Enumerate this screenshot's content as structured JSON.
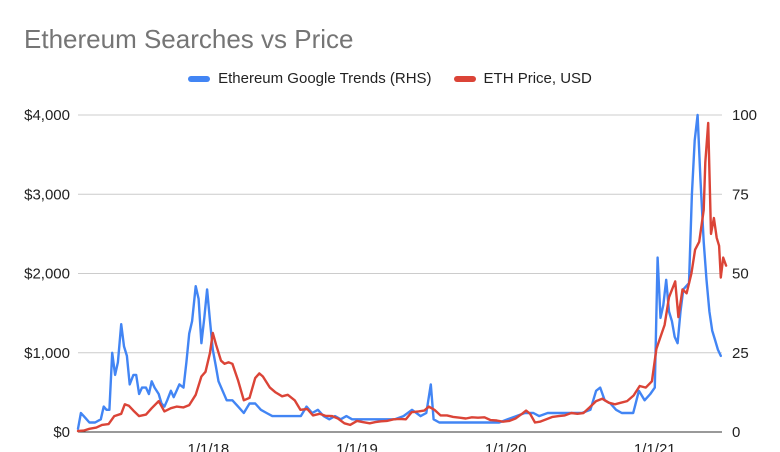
{
  "chart_data": {
    "type": "line",
    "title": "Ethereum Searches vs Price",
    "legend_position": "top",
    "grid": true,
    "x_range": [
      "2017-02-15",
      "2021-06-15"
    ],
    "x_ticks": [
      {
        "label": "1/1/18",
        "date": "2018-01-01"
      },
      {
        "label": "1/1/19",
        "date": "2019-01-01"
      },
      {
        "label": "1/1/20",
        "date": "2020-01-01"
      },
      {
        "label": "1/1/21",
        "date": "2021-01-01"
      }
    ],
    "y_left": {
      "min": 0,
      "max": 4000,
      "ticks": [
        0,
        1000,
        2000,
        3000,
        4000
      ],
      "tick_labels": [
        "$0",
        "$1,000",
        "$2,000",
        "$3,000",
        "$4,000"
      ]
    },
    "y_right": {
      "min": 0,
      "max": 100,
      "ticks": [
        0,
        25,
        50,
        75,
        100
      ],
      "tick_labels": [
        "0",
        "25",
        "50",
        "75",
        "100"
      ]
    },
    "series": [
      {
        "name": "Ethereum Google Trends (RHS)",
        "axis": "right",
        "color": "#4285F4",
        "points": [
          [
            "2017-02-15",
            1
          ],
          [
            "2017-02-22",
            6
          ],
          [
            "2017-03-01",
            5
          ],
          [
            "2017-03-08",
            4
          ],
          [
            "2017-03-15",
            3
          ],
          [
            "2017-03-29",
            3
          ],
          [
            "2017-04-12",
            4
          ],
          [
            "2017-04-19",
            8
          ],
          [
            "2017-04-26",
            7
          ],
          [
            "2017-05-03",
            7
          ],
          [
            "2017-05-10",
            25
          ],
          [
            "2017-05-17",
            18
          ],
          [
            "2017-05-24",
            22
          ],
          [
            "2017-06-01",
            34
          ],
          [
            "2017-06-08",
            27
          ],
          [
            "2017-06-15",
            24
          ],
          [
            "2017-06-22",
            15
          ],
          [
            "2017-07-01",
            18
          ],
          [
            "2017-07-08",
            18
          ],
          [
            "2017-07-15",
            12
          ],
          [
            "2017-07-22",
            14
          ],
          [
            "2017-08-01",
            14
          ],
          [
            "2017-08-08",
            12
          ],
          [
            "2017-08-15",
            16
          ],
          [
            "2017-08-22",
            14
          ],
          [
            "2017-09-01",
            12
          ],
          [
            "2017-09-08",
            9
          ],
          [
            "2017-09-15",
            8
          ],
          [
            "2017-09-22",
            10
          ],
          [
            "2017-10-01",
            13
          ],
          [
            "2017-10-08",
            11
          ],
          [
            "2017-10-15",
            13
          ],
          [
            "2017-10-22",
            15
          ],
          [
            "2017-11-01",
            14
          ],
          [
            "2017-11-08",
            22
          ],
          [
            "2017-11-15",
            31
          ],
          [
            "2017-11-22",
            35
          ],
          [
            "2017-12-01",
            46
          ],
          [
            "2017-12-08",
            42
          ],
          [
            "2017-12-15",
            28
          ],
          [
            "2017-12-22",
            36
          ],
          [
            "2017-12-29",
            45
          ],
          [
            "2018-01-05",
            35
          ],
          [
            "2018-01-12",
            26
          ],
          [
            "2018-01-19",
            21
          ],
          [
            "2018-01-26",
            16
          ],
          [
            "2018-02-05",
            13
          ],
          [
            "2018-02-15",
            10
          ],
          [
            "2018-03-01",
            10
          ],
          [
            "2018-03-15",
            8
          ],
          [
            "2018-03-29",
            6
          ],
          [
            "2018-04-12",
            9
          ],
          [
            "2018-04-26",
            9
          ],
          [
            "2018-05-10",
            7
          ],
          [
            "2018-05-24",
            6
          ],
          [
            "2018-06-07",
            5
          ],
          [
            "2018-06-21",
            5
          ],
          [
            "2018-07-05",
            5
          ],
          [
            "2018-07-19",
            5
          ],
          [
            "2018-08-02",
            5
          ],
          [
            "2018-08-16",
            5
          ],
          [
            "2018-08-30",
            8
          ],
          [
            "2018-09-13",
            6
          ],
          [
            "2018-09-27",
            7
          ],
          [
            "2018-10-11",
            5
          ],
          [
            "2018-10-25",
            4
          ],
          [
            "2018-11-08",
            5
          ],
          [
            "2018-11-22",
            4
          ],
          [
            "2018-12-06",
            5
          ],
          [
            "2018-12-20",
            4
          ],
          [
            "2019-01-10",
            4
          ],
          [
            "2019-02-01",
            4
          ],
          [
            "2019-02-21",
            4
          ],
          [
            "2019-03-14",
            4
          ],
          [
            "2019-04-04",
            4
          ],
          [
            "2019-04-25",
            5
          ],
          [
            "2019-05-16",
            7
          ],
          [
            "2019-06-06",
            5
          ],
          [
            "2019-06-20",
            6
          ],
          [
            "2019-07-01",
            15
          ],
          [
            "2019-07-08",
            4
          ],
          [
            "2019-07-22",
            3
          ],
          [
            "2019-08-12",
            3
          ],
          [
            "2019-09-02",
            3
          ],
          [
            "2019-09-23",
            3
          ],
          [
            "2019-10-14",
            3
          ],
          [
            "2019-11-04",
            3
          ],
          [
            "2019-11-25",
            3
          ],
          [
            "2019-12-16",
            3
          ],
          [
            "2020-01-06",
            4
          ],
          [
            "2020-01-27",
            5
          ],
          [
            "2020-02-17",
            6
          ],
          [
            "2020-03-09",
            6
          ],
          [
            "2020-03-23",
            5
          ],
          [
            "2020-04-13",
            6
          ],
          [
            "2020-05-04",
            6
          ],
          [
            "2020-05-25",
            6
          ],
          [
            "2020-06-15",
            6
          ],
          [
            "2020-07-06",
            6
          ],
          [
            "2020-07-27",
            7
          ],
          [
            "2020-08-10",
            13
          ],
          [
            "2020-08-20",
            14
          ],
          [
            "2020-08-31",
            10
          ],
          [
            "2020-09-14",
            9
          ],
          [
            "2020-09-28",
            7
          ],
          [
            "2020-10-12",
            6
          ],
          [
            "2020-10-26",
            6
          ],
          [
            "2020-11-09",
            6
          ],
          [
            "2020-11-23",
            13
          ],
          [
            "2020-12-07",
            10
          ],
          [
            "2020-12-21",
            12
          ],
          [
            "2021-01-01",
            14
          ],
          [
            "2021-01-08",
            55
          ],
          [
            "2021-01-15",
            36
          ],
          [
            "2021-01-22",
            40
          ],
          [
            "2021-01-29",
            48
          ],
          [
            "2021-02-05",
            38
          ],
          [
            "2021-02-12",
            35
          ],
          [
            "2021-02-19",
            30
          ],
          [
            "2021-02-26",
            28
          ],
          [
            "2021-03-05",
            38
          ],
          [
            "2021-03-12",
            45
          ],
          [
            "2021-03-19",
            46
          ],
          [
            "2021-03-26",
            47
          ],
          [
            "2021-04-02",
            75
          ],
          [
            "2021-04-09",
            92
          ],
          [
            "2021-04-16",
            100
          ],
          [
            "2021-04-23",
            80
          ],
          [
            "2021-05-01",
            60
          ],
          [
            "2021-05-08",
            48
          ],
          [
            "2021-05-15",
            38
          ],
          [
            "2021-05-22",
            32
          ],
          [
            "2021-05-29",
            29
          ],
          [
            "2021-06-05",
            26
          ],
          [
            "2021-06-12",
            24
          ]
        ]
      },
      {
        "name": "ETH Price, USD",
        "axis": "left",
        "color": "#DB4437",
        "points": [
          [
            "2017-02-15",
            12
          ],
          [
            "2017-03-01",
            18
          ],
          [
            "2017-03-15",
            40
          ],
          [
            "2017-04-01",
            55
          ],
          [
            "2017-04-15",
            90
          ],
          [
            "2017-05-01",
            100
          ],
          [
            "2017-05-15",
            200
          ],
          [
            "2017-06-01",
            230
          ],
          [
            "2017-06-10",
            350
          ],
          [
            "2017-06-20",
            330
          ],
          [
            "2017-07-01",
            270
          ],
          [
            "2017-07-15",
            200
          ],
          [
            "2017-08-01",
            220
          ],
          [
            "2017-08-15",
            300
          ],
          [
            "2017-09-01",
            390
          ],
          [
            "2017-09-15",
            260
          ],
          [
            "2017-10-01",
            300
          ],
          [
            "2017-10-15",
            320
          ],
          [
            "2017-11-01",
            310
          ],
          [
            "2017-11-15",
            340
          ],
          [
            "2017-12-01",
            470
          ],
          [
            "2017-12-15",
            700
          ],
          [
            "2017-12-25",
            760
          ],
          [
            "2018-01-05",
            1000
          ],
          [
            "2018-01-12",
            1250
          ],
          [
            "2018-01-20",
            1100
          ],
          [
            "2018-02-01",
            900
          ],
          [
            "2018-02-10",
            860
          ],
          [
            "2018-02-20",
            880
          ],
          [
            "2018-03-01",
            860
          ],
          [
            "2018-03-15",
            650
          ],
          [
            "2018-03-29",
            400
          ],
          [
            "2018-04-12",
            430
          ],
          [
            "2018-04-26",
            680
          ],
          [
            "2018-05-06",
            740
          ],
          [
            "2018-05-15",
            700
          ],
          [
            "2018-06-01",
            560
          ],
          [
            "2018-06-15",
            500
          ],
          [
            "2018-07-01",
            450
          ],
          [
            "2018-07-15",
            470
          ],
          [
            "2018-08-01",
            400
          ],
          [
            "2018-08-15",
            280
          ],
          [
            "2018-09-01",
            290
          ],
          [
            "2018-09-15",
            210
          ],
          [
            "2018-10-01",
            230
          ],
          [
            "2018-10-15",
            205
          ],
          [
            "2018-11-01",
            200
          ],
          [
            "2018-11-15",
            170
          ],
          [
            "2018-12-01",
            110
          ],
          [
            "2018-12-15",
            90
          ],
          [
            "2019-01-01",
            140
          ],
          [
            "2019-01-15",
            125
          ],
          [
            "2019-02-01",
            110
          ],
          [
            "2019-02-15",
            125
          ],
          [
            "2019-03-01",
            135
          ],
          [
            "2019-03-15",
            140
          ],
          [
            "2019-04-01",
            160
          ],
          [
            "2019-04-15",
            165
          ],
          [
            "2019-05-01",
            160
          ],
          [
            "2019-05-15",
            250
          ],
          [
            "2019-06-01",
            260
          ],
          [
            "2019-06-15",
            270
          ],
          [
            "2019-06-26",
            320
          ],
          [
            "2019-07-10",
            280
          ],
          [
            "2019-07-25",
            210
          ],
          [
            "2019-08-10",
            210
          ],
          [
            "2019-08-25",
            190
          ],
          [
            "2019-09-10",
            180
          ],
          [
            "2019-09-25",
            170
          ],
          [
            "2019-10-10",
            185
          ],
          [
            "2019-10-25",
            180
          ],
          [
            "2019-11-10",
            185
          ],
          [
            "2019-11-25",
            150
          ],
          [
            "2019-12-10",
            145
          ],
          [
            "2019-12-25",
            130
          ],
          [
            "2020-01-10",
            140
          ],
          [
            "2020-01-25",
            170
          ],
          [
            "2020-02-10",
            230
          ],
          [
            "2020-02-20",
            270
          ],
          [
            "2020-03-01",
            230
          ],
          [
            "2020-03-13",
            120
          ],
          [
            "2020-03-25",
            130
          ],
          [
            "2020-04-10",
            160
          ],
          [
            "2020-04-25",
            190
          ],
          [
            "2020-05-10",
            200
          ],
          [
            "2020-05-25",
            210
          ],
          [
            "2020-06-10",
            240
          ],
          [
            "2020-06-25",
            230
          ],
          [
            "2020-07-10",
            240
          ],
          [
            "2020-07-25",
            310
          ],
          [
            "2020-08-10",
            390
          ],
          [
            "2020-08-25",
            420
          ],
          [
            "2020-09-10",
            370
          ],
          [
            "2020-09-25",
            350
          ],
          [
            "2020-10-10",
            370
          ],
          [
            "2020-10-25",
            390
          ],
          [
            "2020-11-10",
            460
          ],
          [
            "2020-11-25",
            580
          ],
          [
            "2020-12-10",
            560
          ],
          [
            "2020-12-25",
            640
          ],
          [
            "2021-01-05",
            1050
          ],
          [
            "2021-01-15",
            1200
          ],
          [
            "2021-01-25",
            1350
          ],
          [
            "2021-02-05",
            1700
          ],
          [
            "2021-02-20",
            1900
          ],
          [
            "2021-02-28",
            1450
          ],
          [
            "2021-03-10",
            1800
          ],
          [
            "2021-03-20",
            1750
          ],
          [
            "2021-04-01",
            2000
          ],
          [
            "2021-04-10",
            2300
          ],
          [
            "2021-04-20",
            2400
          ],
          [
            "2021-05-01",
            2800
          ],
          [
            "2021-05-05",
            3400
          ],
          [
            "2021-05-12",
            3900
          ],
          [
            "2021-05-19",
            2500
          ],
          [
            "2021-05-26",
            2700
          ],
          [
            "2021-06-02",
            2450
          ],
          [
            "2021-06-08",
            2350
          ],
          [
            "2021-06-12",
            1950
          ],
          [
            "2021-06-18",
            2200
          ],
          [
            "2021-06-25",
            2100
          ]
        ]
      }
    ]
  }
}
